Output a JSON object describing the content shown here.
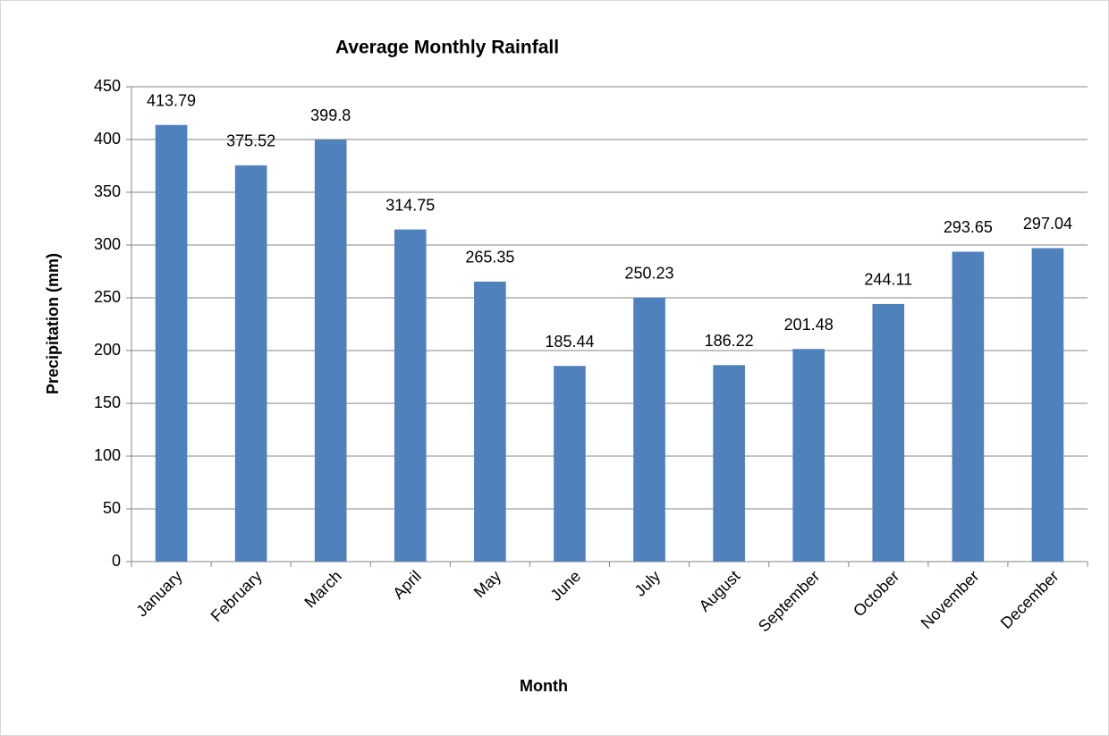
{
  "chart_data": {
    "type": "bar",
    "title": "Average Monthly Rainfall",
    "x_label": "Month",
    "y_label": "Precipitation (mm)",
    "categories": [
      "January",
      "February",
      "March",
      "April",
      "May",
      "June",
      "July",
      "August",
      "September",
      "October",
      "November",
      "December"
    ],
    "values": [
      413.79,
      375.52,
      399.8,
      314.75,
      265.35,
      185.44,
      250.23,
      186.22,
      201.48,
      244.11,
      293.65,
      297.04
    ],
    "color": "#4f81bd",
    "ylim": [
      0,
      450
    ],
    "yticks": [
      0,
      50,
      100,
      150,
      200,
      250,
      300,
      350,
      400,
      450
    ],
    "grid": true,
    "data_labels": true
  }
}
